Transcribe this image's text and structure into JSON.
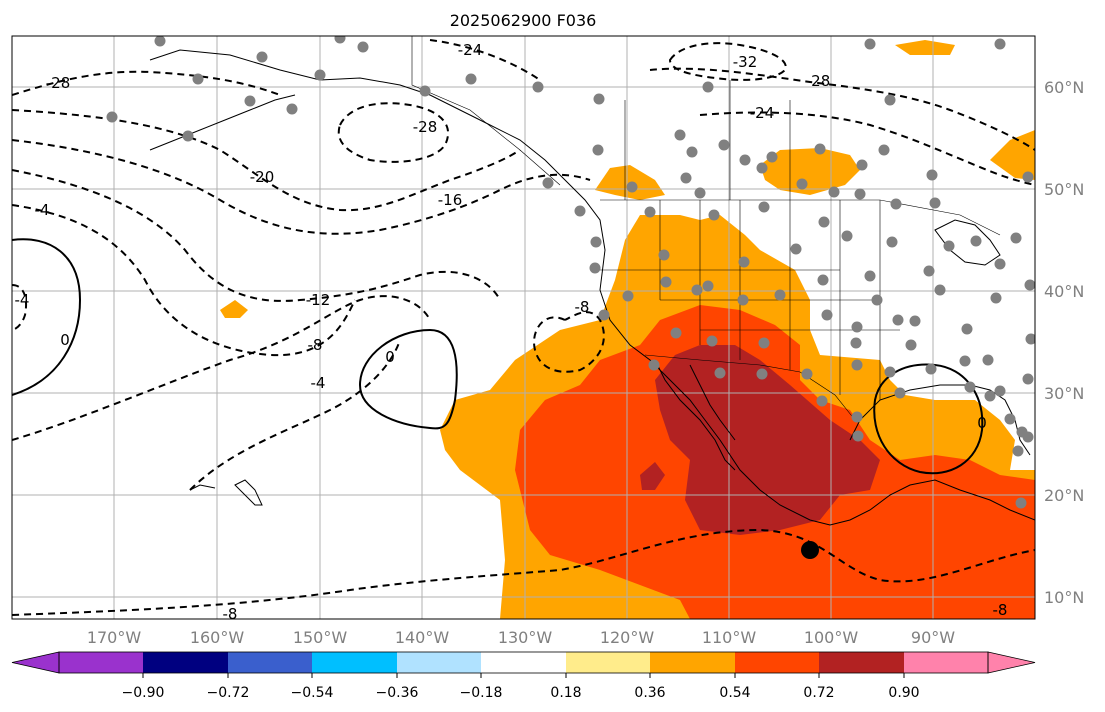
{
  "title": "2025062900 F036",
  "map": {
    "lon_labels": [
      "170°W",
      "160°W",
      "150°W",
      "140°W",
      "130°W",
      "120°W",
      "110°W",
      "100°W",
      "90°W"
    ],
    "lat_labels": [
      "60°N",
      "50°N",
      "40°N",
      "30°N",
      "20°N",
      "10°N"
    ],
    "contour_labels": [
      "-24",
      "-32",
      "-28",
      "-24",
      "-28",
      "-28",
      "-20",
      "-16",
      "-4",
      "-4",
      "-12",
      "-8",
      "-8",
      "-4",
      "0",
      "0",
      "0",
      "-8",
      "-8"
    ],
    "legend_marker_note": ""
  },
  "colorbar": {
    "ticks": [
      "−0.90",
      "−0.72",
      "−0.54",
      "−0.36",
      "−0.18",
      "0.18",
      "0.36",
      "0.54",
      "0.72",
      "0.90"
    ],
    "colors": [
      "#9a32cd",
      "#000080",
      "#3a5fcd",
      "#00bfff",
      "#b0e2ff",
      "#ffffff",
      "#ffec8b",
      "#ffa500",
      "#ff4500",
      "#b22222",
      "#ff82ab"
    ]
  },
  "fill_colors": {
    "level_036": "#ffa500",
    "level_054": "#ff4500",
    "level_072": "#b22222"
  }
}
